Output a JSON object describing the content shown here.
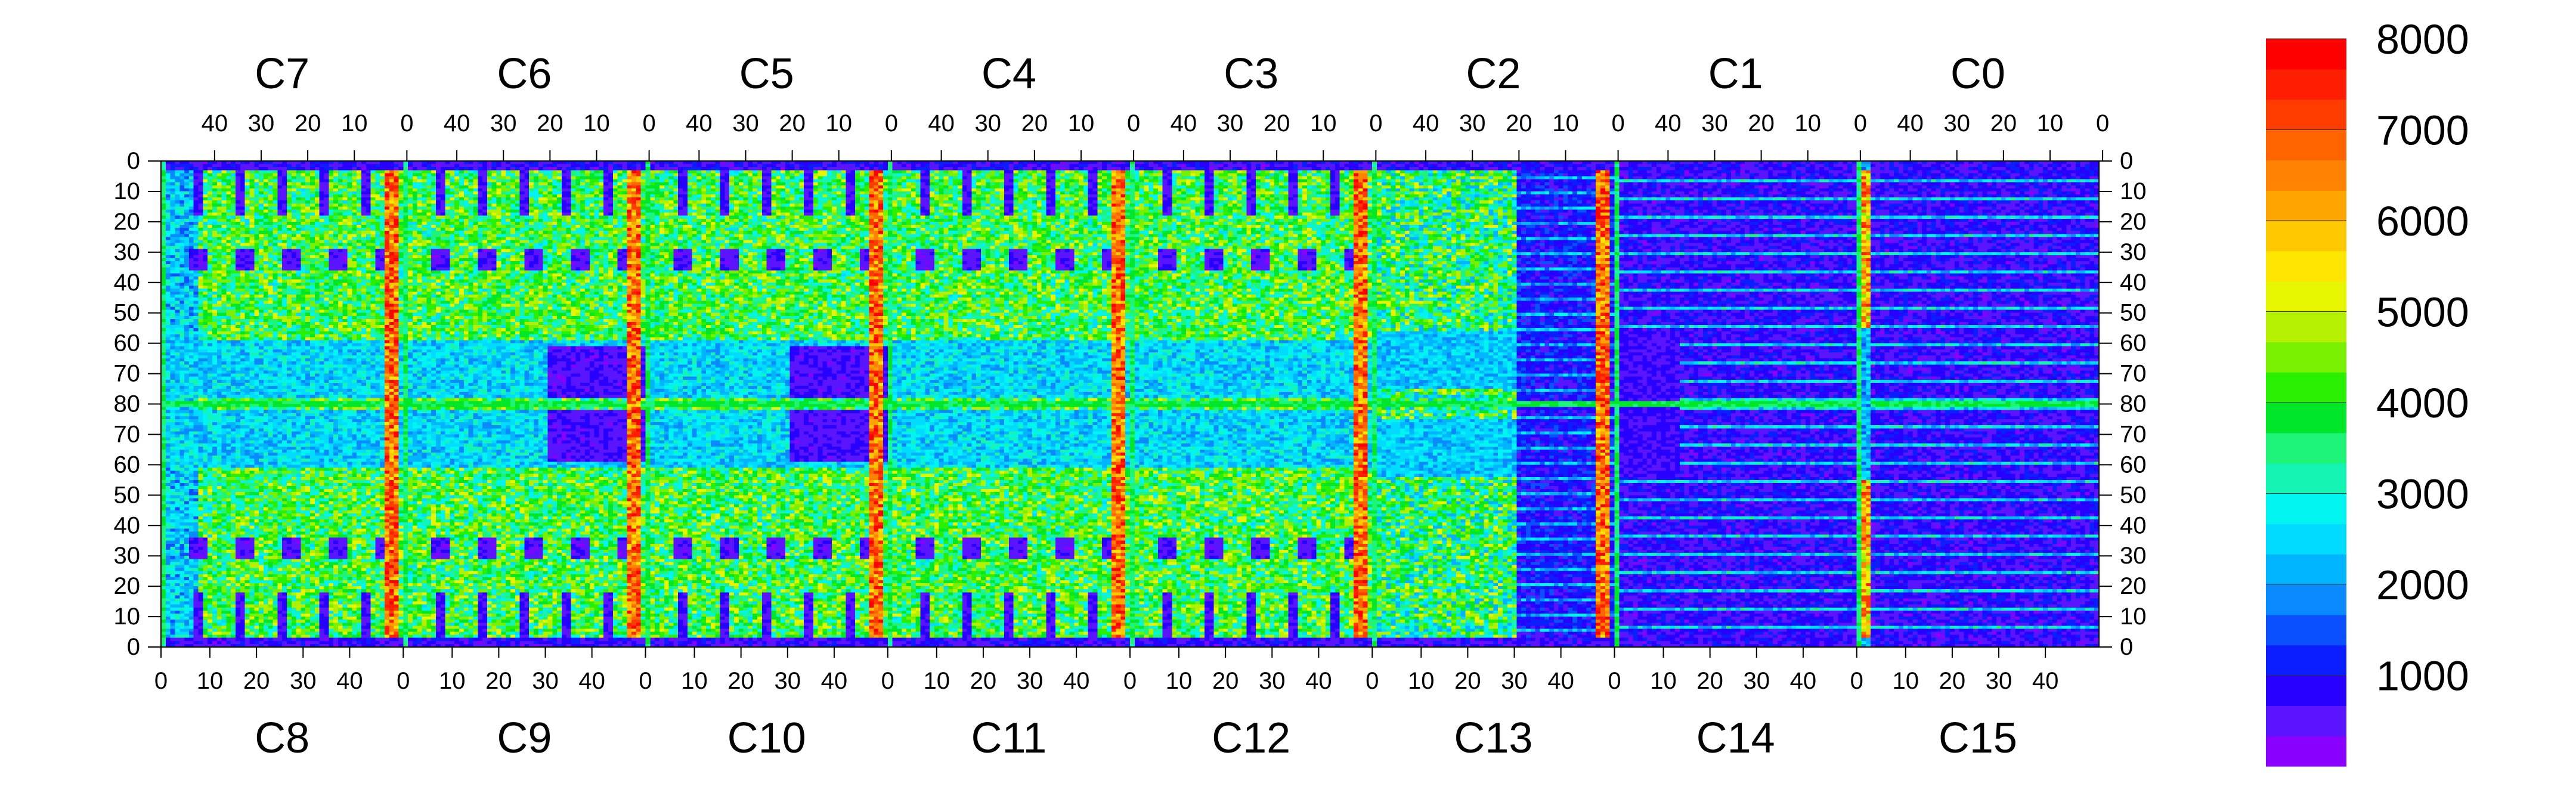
{
  "chart_data": {
    "type": "heatmap",
    "title": "",
    "colorbar": {
      "min": 0,
      "max": 8000,
      "tick_labels": [
        "1000",
        "2000",
        "3000",
        "4000",
        "5000",
        "6000",
        "7000",
        "8000"
      ],
      "tick_values": [
        1000,
        2000,
        3000,
        4000,
        5000,
        6000,
        7000,
        8000
      ],
      "colors": [
        "#8a00ff",
        "#5a14ff",
        "#2800ff",
        "#0a1eff",
        "#0a50ff",
        "#0a8aff",
        "#00b4ff",
        "#00dcff",
        "#00f5f0",
        "#14f5b4",
        "#1ef578",
        "#00e628",
        "#28f000",
        "#78f000",
        "#b4f000",
        "#e6f500",
        "#ffe600",
        "#ffc800",
        "#ffa500",
        "#ff8200",
        "#ff6400",
        "#ff3c00",
        "#ff1e00",
        "#ff0000"
      ]
    },
    "top_chip_labels": [
      "C7",
      "C6",
      "C5",
      "C4",
      "C3",
      "C2",
      "C1",
      "C0"
    ],
    "bottom_chip_labels": [
      "C8",
      "C9",
      "C10",
      "C11",
      "C12",
      "C13",
      "C14",
      "C15"
    ],
    "top_tick_labels": [
      "40",
      "30",
      "20",
      "10",
      "0"
    ],
    "bottom_tick_labels": [
      "0",
      "10",
      "20",
      "30",
      "40"
    ],
    "row_tick_labels_top_half": [
      "0",
      "10",
      "20",
      "30",
      "40",
      "50",
      "60",
      "70",
      "80"
    ],
    "row_tick_labels_bottom_half": [
      "70",
      "60",
      "50",
      "40",
      "30",
      "20",
      "10",
      "0"
    ],
    "columns_per_chip": 52,
    "rows_per_half": 80,
    "note_values": "per-pixel occupancy map: cooler (blue/violet) ~500-2000, green ~3000-4000, red column stripes near chip column 0 ~7000-8000"
  }
}
